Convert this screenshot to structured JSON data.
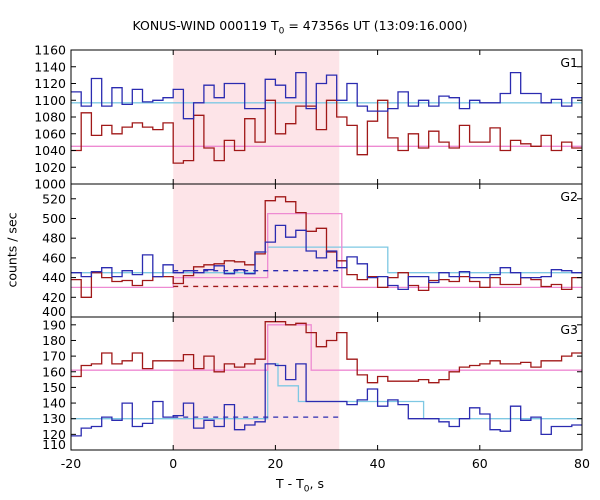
{
  "chart_data": {
    "type": "line",
    "title_main": "KONUS-WIND 000119 T",
    "title_sub": "0",
    "title_rest": " = 47356s UT (13:09:16.000)",
    "xlabel_main": "T - T",
    "xlabel_sub": "0",
    "xlabel_rest": ", s",
    "ylabel": "counts / sec",
    "xlim": [
      -20,
      80
    ],
    "x_ticks": [
      "-20",
      "0",
      "20",
      "40",
      "60",
      "80"
    ],
    "x_tick_values": [
      -20,
      0,
      20,
      40,
      60,
      80
    ],
    "shaded_interval": [
      0,
      32.5
    ],
    "colors": {
      "series_a": "#2b2bb0",
      "series_b": "#a01818",
      "fit_a": "#7ec8e3",
      "fit_b": "#ee8ad2",
      "shade": "#fde4e8"
    },
    "panels": [
      {
        "label": "G1",
        "ylim": [
          1000,
          1160
        ],
        "y_ticks": [
          "1000",
          "1020",
          "1040",
          "1060",
          "1080",
          "1100",
          "1120",
          "1140",
          "1160"
        ],
        "y_tick_values": [
          1000,
          1020,
          1040,
          1060,
          1080,
          1100,
          1120,
          1140,
          1160
        ],
        "blue_edges": [
          -20,
          -18,
          -16,
          -14,
          -12,
          -10,
          -8,
          -6,
          -4,
          -2,
          0,
          2,
          4,
          6,
          8,
          10,
          12,
          14,
          16,
          18,
          20,
          22,
          24,
          26,
          28,
          30,
          32,
          34,
          36,
          38,
          40,
          42,
          44,
          46,
          48,
          50,
          52,
          54,
          56,
          58,
          60,
          62,
          64,
          66,
          68,
          70,
          72,
          74,
          76,
          78,
          80
        ],
        "blue_values": [
          1110,
          1093,
          1126,
          1093,
          1115,
          1095,
          1113,
          1098,
          1100,
          1103,
          1113,
          1078,
          1097,
          1118,
          1103,
          1120,
          1120,
          1090,
          1090,
          1125,
          1118,
          1103,
          1133,
          1090,
          1120,
          1130,
          1100,
          1120,
          1093,
          1087,
          1087,
          1090,
          1110,
          1093,
          1100,
          1093,
          1105,
          1103,
          1090,
          1100,
          1097,
          1097,
          1108,
          1133,
          1108,
          1108,
          1097,
          1101,
          1093,
          1103
        ],
        "red_edges": [
          -20,
          -18,
          -16,
          -14,
          -12,
          -10,
          -8,
          -6,
          -4,
          -2,
          0,
          2,
          4,
          6,
          8,
          10,
          12,
          14,
          16,
          18,
          20,
          22,
          24,
          26,
          28,
          30,
          32,
          34,
          36,
          38,
          40,
          42,
          44,
          46,
          48,
          50,
          52,
          54,
          56,
          58,
          60,
          62,
          64,
          66,
          68,
          70,
          72,
          74,
          76,
          78,
          80
        ],
        "red_values": [
          1040,
          1085,
          1058,
          1070,
          1060,
          1068,
          1073,
          1068,
          1065,
          1073,
          1025,
          1028,
          1082,
          1043,
          1028,
          1052,
          1040,
          1078,
          1050,
          1100,
          1060,
          1072,
          1093,
          1093,
          1065,
          1100,
          1080,
          1070,
          1035,
          1075,
          1100,
          1055,
          1040,
          1060,
          1043,
          1063,
          1050,
          1043,
          1070,
          1050,
          1050,
          1067,
          1040,
          1052,
          1048,
          1045,
          1058,
          1040,
          1050,
          1043
        ],
        "fit_a": [
          {
            "x1": -20,
            "x2": 80,
            "y": 1097
          }
        ],
        "fit_b": [
          {
            "x1": -20,
            "x2": 80,
            "y": 1045
          }
        ],
        "fit_a_dash": [],
        "fit_b_dash": []
      },
      {
        "label": "G2",
        "ylim": [
          400,
          535
        ],
        "y_ticks": [
          "400",
          "420",
          "440",
          "460",
          "480",
          "500",
          "520"
        ],
        "y_tick_values": [
          400,
          420,
          440,
          460,
          480,
          500,
          520
        ],
        "blue_edges": [
          -20,
          -18,
          -16,
          -14,
          -12,
          -10,
          -8,
          -6,
          -4,
          -2,
          0,
          2,
          4,
          6,
          8,
          10,
          12,
          14,
          16,
          18,
          20,
          22,
          24,
          26,
          28,
          30,
          32,
          34,
          36,
          38,
          40,
          42,
          44,
          46,
          48,
          50,
          52,
          54,
          56,
          58,
          60,
          62,
          64,
          66,
          68,
          70,
          72,
          74,
          76,
          78,
          80
        ],
        "blue_values": [
          445,
          441,
          446,
          450,
          441,
          447,
          443,
          463,
          441,
          453,
          445,
          447,
          445,
          448,
          452,
          444,
          448,
          444,
          466,
          476,
          493,
          481,
          488,
          467,
          460,
          467,
          450,
          461,
          454,
          440,
          441,
          432,
          428,
          441,
          441,
          435,
          445,
          441,
          446,
          440,
          440,
          443,
          450,
          445,
          440,
          440,
          441,
          448,
          447,
          445
        ],
        "red_edges": [
          -20,
          -18,
          -16,
          -14,
          -12,
          -10,
          -8,
          -6,
          -4,
          -2,
          0,
          2,
          4,
          6,
          8,
          10,
          12,
          14,
          16,
          18,
          20,
          22,
          24,
          26,
          28,
          30,
          32,
          34,
          36,
          38,
          40,
          42,
          44,
          46,
          48,
          50,
          52,
          54,
          56,
          58,
          60,
          62,
          64,
          66,
          68,
          70,
          72,
          74,
          76,
          78,
          80
        ],
        "red_values": [
          438,
          420,
          445,
          440,
          436,
          437,
          432,
          437,
          441,
          441,
          434,
          442,
          451,
          453,
          454,
          457,
          456,
          453,
          464,
          518,
          522,
          517,
          506,
          487,
          490,
          466,
          457,
          443,
          438,
          441,
          430,
          440,
          445,
          432,
          427,
          437,
          438,
          436,
          441,
          436,
          430,
          440,
          433,
          433,
          440,
          438,
          431,
          433,
          428,
          440
        ],
        "fit_a": [
          {
            "x1": -20,
            "x2": 16,
            "y": 445
          },
          {
            "x1": 16,
            "x2": 18.5,
            "y": 466
          },
          {
            "x1": 18.5,
            "x2": 42,
            "y": 471
          },
          {
            "x1": 42,
            "x2": 80,
            "y": 445
          }
        ],
        "fit_b": [
          {
            "x1": -20,
            "x2": 0,
            "y": 430
          },
          {
            "x1": 0,
            "x2": 18.5,
            "y": 440
          },
          {
            "x1": 18.5,
            "x2": 33,
            "y": 505
          },
          {
            "x1": 33,
            "x2": 80,
            "y": 430
          }
        ],
        "fit_a_dash": [
          {
            "x1": 0,
            "x2": 33,
            "y": 447
          }
        ],
        "fit_b_dash": [
          {
            "x1": 0,
            "x2": 33,
            "y": 431
          }
        ]
      },
      {
        "label": "G3",
        "ylim": [
          110,
          195
        ],
        "y_ticks": [
          "110",
          "120",
          "130",
          "140",
          "150",
          "160",
          "170",
          "180",
          "190"
        ],
        "y_tick_values": [
          110,
          120,
          130,
          140,
          150,
          160,
          170,
          180,
          190
        ],
        "blue_edges": [
          -20,
          -18,
          -16,
          -14,
          -12,
          -10,
          -8,
          -6,
          -4,
          -2,
          0,
          2,
          4,
          6,
          8,
          10,
          12,
          14,
          16,
          18,
          20,
          22,
          24,
          26,
          28,
          30,
          32,
          34,
          36,
          38,
          40,
          42,
          44,
          46,
          48,
          50,
          52,
          54,
          56,
          58,
          60,
          62,
          64,
          66,
          68,
          70,
          72,
          74,
          76,
          78,
          80
        ],
        "blue_values": [
          119,
          124,
          125,
          131,
          129,
          140,
          125,
          127,
          141,
          131,
          132,
          140,
          124,
          129,
          125,
          139,
          123,
          126,
          128,
          165,
          164,
          155,
          165,
          141,
          141,
          141,
          141,
          139,
          142,
          149,
          138,
          142,
          139,
          130,
          130,
          130,
          128,
          125,
          130,
          137,
          133,
          123,
          122,
          138,
          129,
          131,
          120,
          125,
          125,
          126
        ],
        "red_edges": [
          -20,
          -18,
          -16,
          -14,
          -12,
          -10,
          -8,
          -6,
          -4,
          -2,
          0,
          2,
          4,
          6,
          8,
          10,
          12,
          14,
          16,
          18,
          20,
          22,
          24,
          26,
          28,
          30,
          32,
          34,
          36,
          38,
          40,
          42,
          44,
          46,
          48,
          50,
          52,
          54,
          56,
          58,
          60,
          62,
          64,
          66,
          68,
          70,
          72,
          74,
          76,
          78,
          80
        ],
        "red_values": [
          157,
          164,
          165,
          172,
          165,
          167,
          172,
          162,
          167,
          167,
          167,
          171,
          162,
          170,
          160,
          165,
          163,
          165,
          168,
          192,
          192,
          190,
          191,
          185,
          176,
          180,
          185,
          168,
          158,
          153,
          157,
          154,
          154,
          154,
          155,
          153,
          155,
          160,
          163,
          164,
          165,
          167,
          165,
          165,
          166,
          163,
          167,
          167,
          170,
          172
        ],
        "fit_a": [
          {
            "x1": -20,
            "x2": 18.5,
            "y": 130
          },
          {
            "x1": 18.5,
            "x2": 20.5,
            "y": 165
          },
          {
            "x1": 20.5,
            "x2": 24.5,
            "y": 151
          },
          {
            "x1": 24.5,
            "x2": 24.5,
            "y": 151
          },
          {
            "x1": 24.5,
            "x2": 49,
            "y": 141
          },
          {
            "x1": 49,
            "x2": 80,
            "y": 130
          }
        ],
        "fit_b": [
          {
            "x1": -20,
            "x2": 18.5,
            "y": 161
          },
          {
            "x1": 18.5,
            "x2": 27,
            "y": 190
          },
          {
            "x1": 27,
            "x2": 80,
            "y": 161
          }
        ],
        "fit_a_dash": [
          {
            "x1": 0,
            "x2": 33,
            "y": 131
          }
        ],
        "fit_b_dash": []
      }
    ]
  }
}
